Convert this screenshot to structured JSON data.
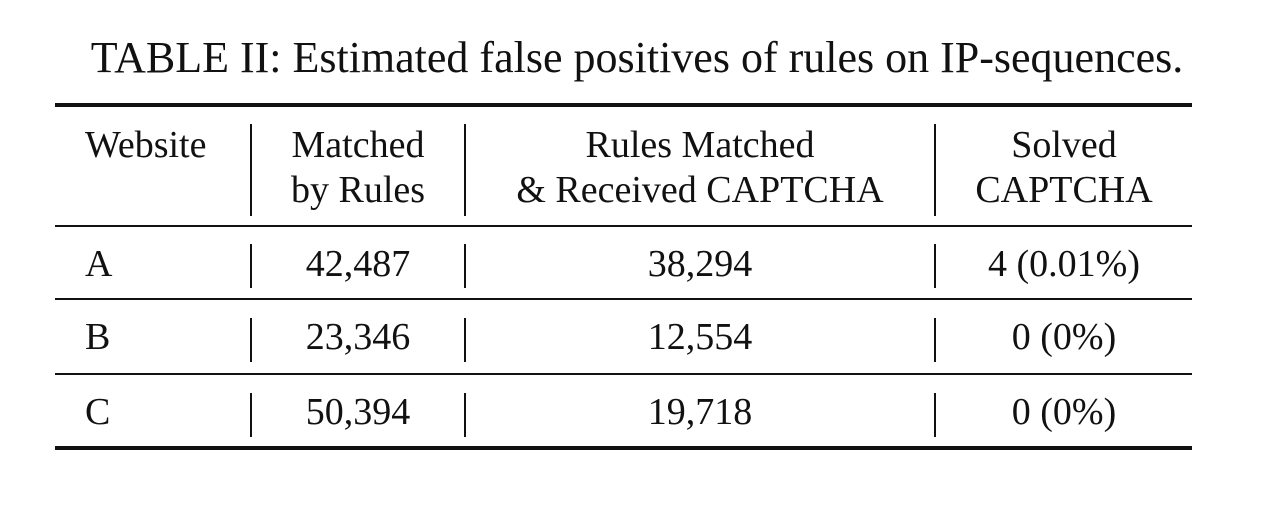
{
  "caption": "TABLE II: Estimated false positives of rules on IP-sequences.",
  "table": {
    "headers": [
      [
        "Website"
      ],
      [
        "Matched",
        "by Rules"
      ],
      [
        "Rules Matched",
        "& Received CAPTCHA"
      ],
      [
        "Solved",
        "CAPTCHA"
      ]
    ],
    "rows": [
      [
        "A",
        "42,487",
        "38,294",
        "4 (0.01%)"
      ],
      [
        "B",
        "23,346",
        "12,554",
        "0 (0%)"
      ],
      [
        "C",
        "50,394",
        "19,718",
        "0 (0%)"
      ]
    ]
  }
}
